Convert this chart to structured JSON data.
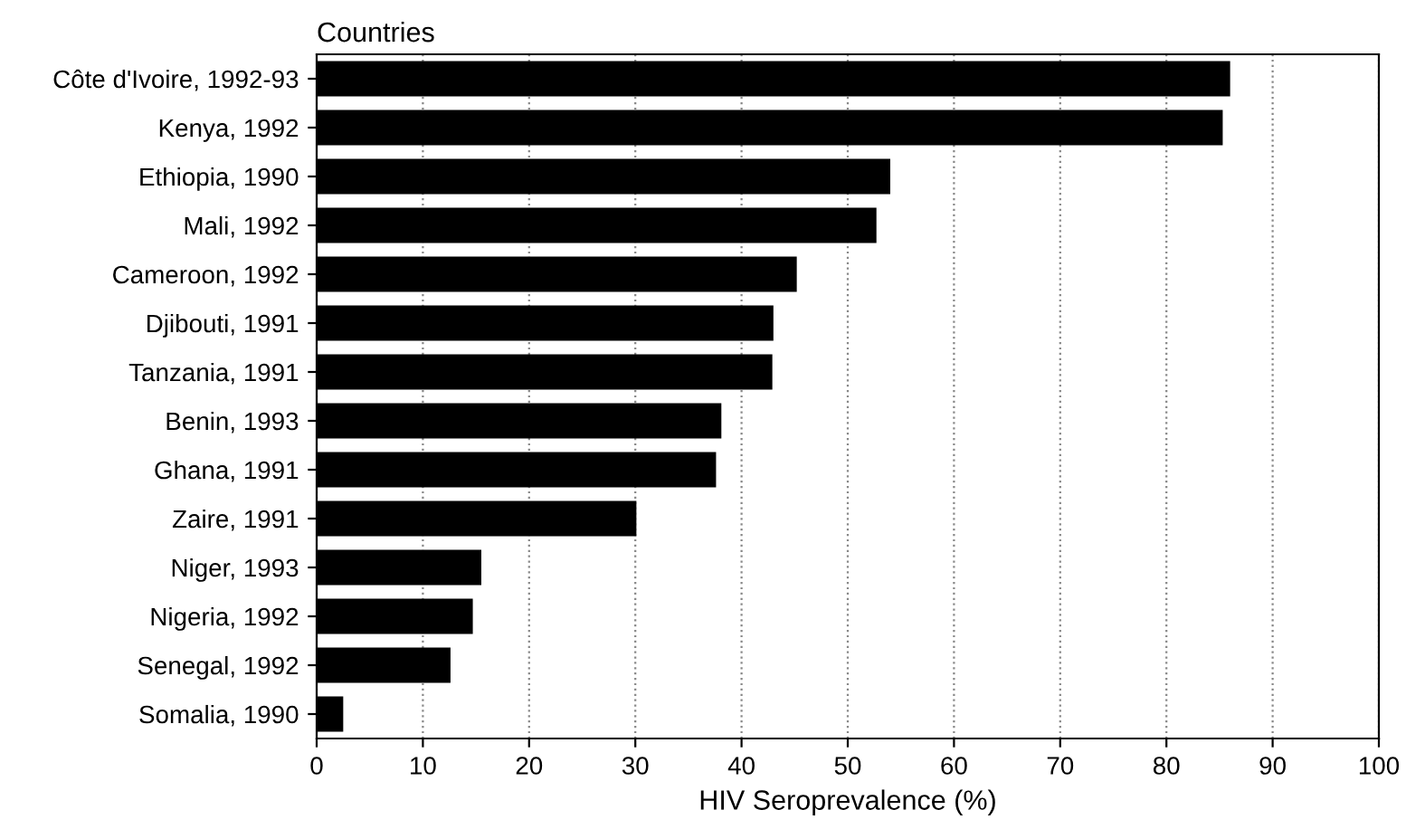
{
  "chart_data": {
    "type": "bar",
    "orientation": "horizontal",
    "ylabel": "Countries",
    "xlabel": "HIV Seroprevalence (%)",
    "categories": [
      "Côte d'Ivoire, 1992-93",
      "Kenya, 1992",
      "Ethiopia, 1990",
      "Mali, 1992",
      "Cameroon, 1992",
      "Djibouti, 1991",
      "Tanzania, 1991",
      "Benin, 1993",
      "Ghana, 1991",
      "Zaire, 1991",
      "Niger, 1993",
      "Nigeria, 1992",
      "Senegal, 1992",
      "Somalia, 1990"
    ],
    "values": [
      86,
      85.3,
      54,
      52.7,
      45.2,
      43,
      42.9,
      38.1,
      37.6,
      30.1,
      15.5,
      14.7,
      12.6,
      2.5
    ],
    "color": "#000000",
    "xlim": [
      0,
      100
    ],
    "xticks": [
      0,
      10,
      20,
      30,
      40,
      50,
      60,
      70,
      80,
      90,
      100
    ],
    "grid": "x"
  }
}
